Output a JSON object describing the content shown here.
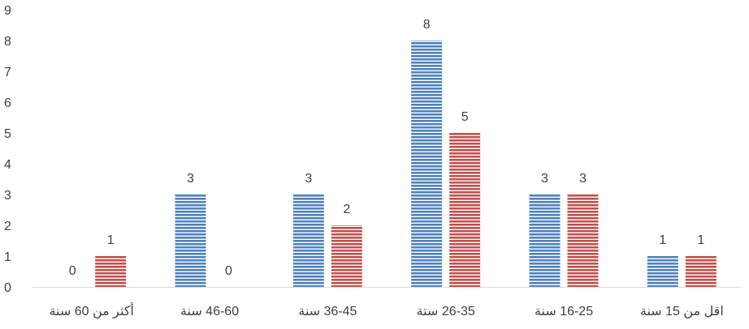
{
  "chart_data": {
    "type": "bar",
    "title": "",
    "xlabel": "",
    "ylabel": "",
    "ylim": [
      0,
      9
    ],
    "yticks": [
      0,
      1,
      2,
      3,
      4,
      5,
      6,
      7,
      8,
      9
    ],
    "grid": false,
    "legend": "none",
    "categories": [
      "أكثر من 60 سنة",
      "46-60 سنة",
      "36-45 سنة",
      "26-35 ستة",
      "16-25 سنة",
      "اقل من 15 سنة"
    ],
    "series": [
      {
        "values": [
          0,
          3,
          3,
          8,
          3,
          1
        ],
        "color": "#4F81BD",
        "pattern": "horizontal-stripes"
      },
      {
        "values": [
          1,
          0,
          2,
          5,
          3,
          1
        ],
        "color": "#C0504D",
        "pattern": "horizontal-stripes"
      }
    ]
  }
}
